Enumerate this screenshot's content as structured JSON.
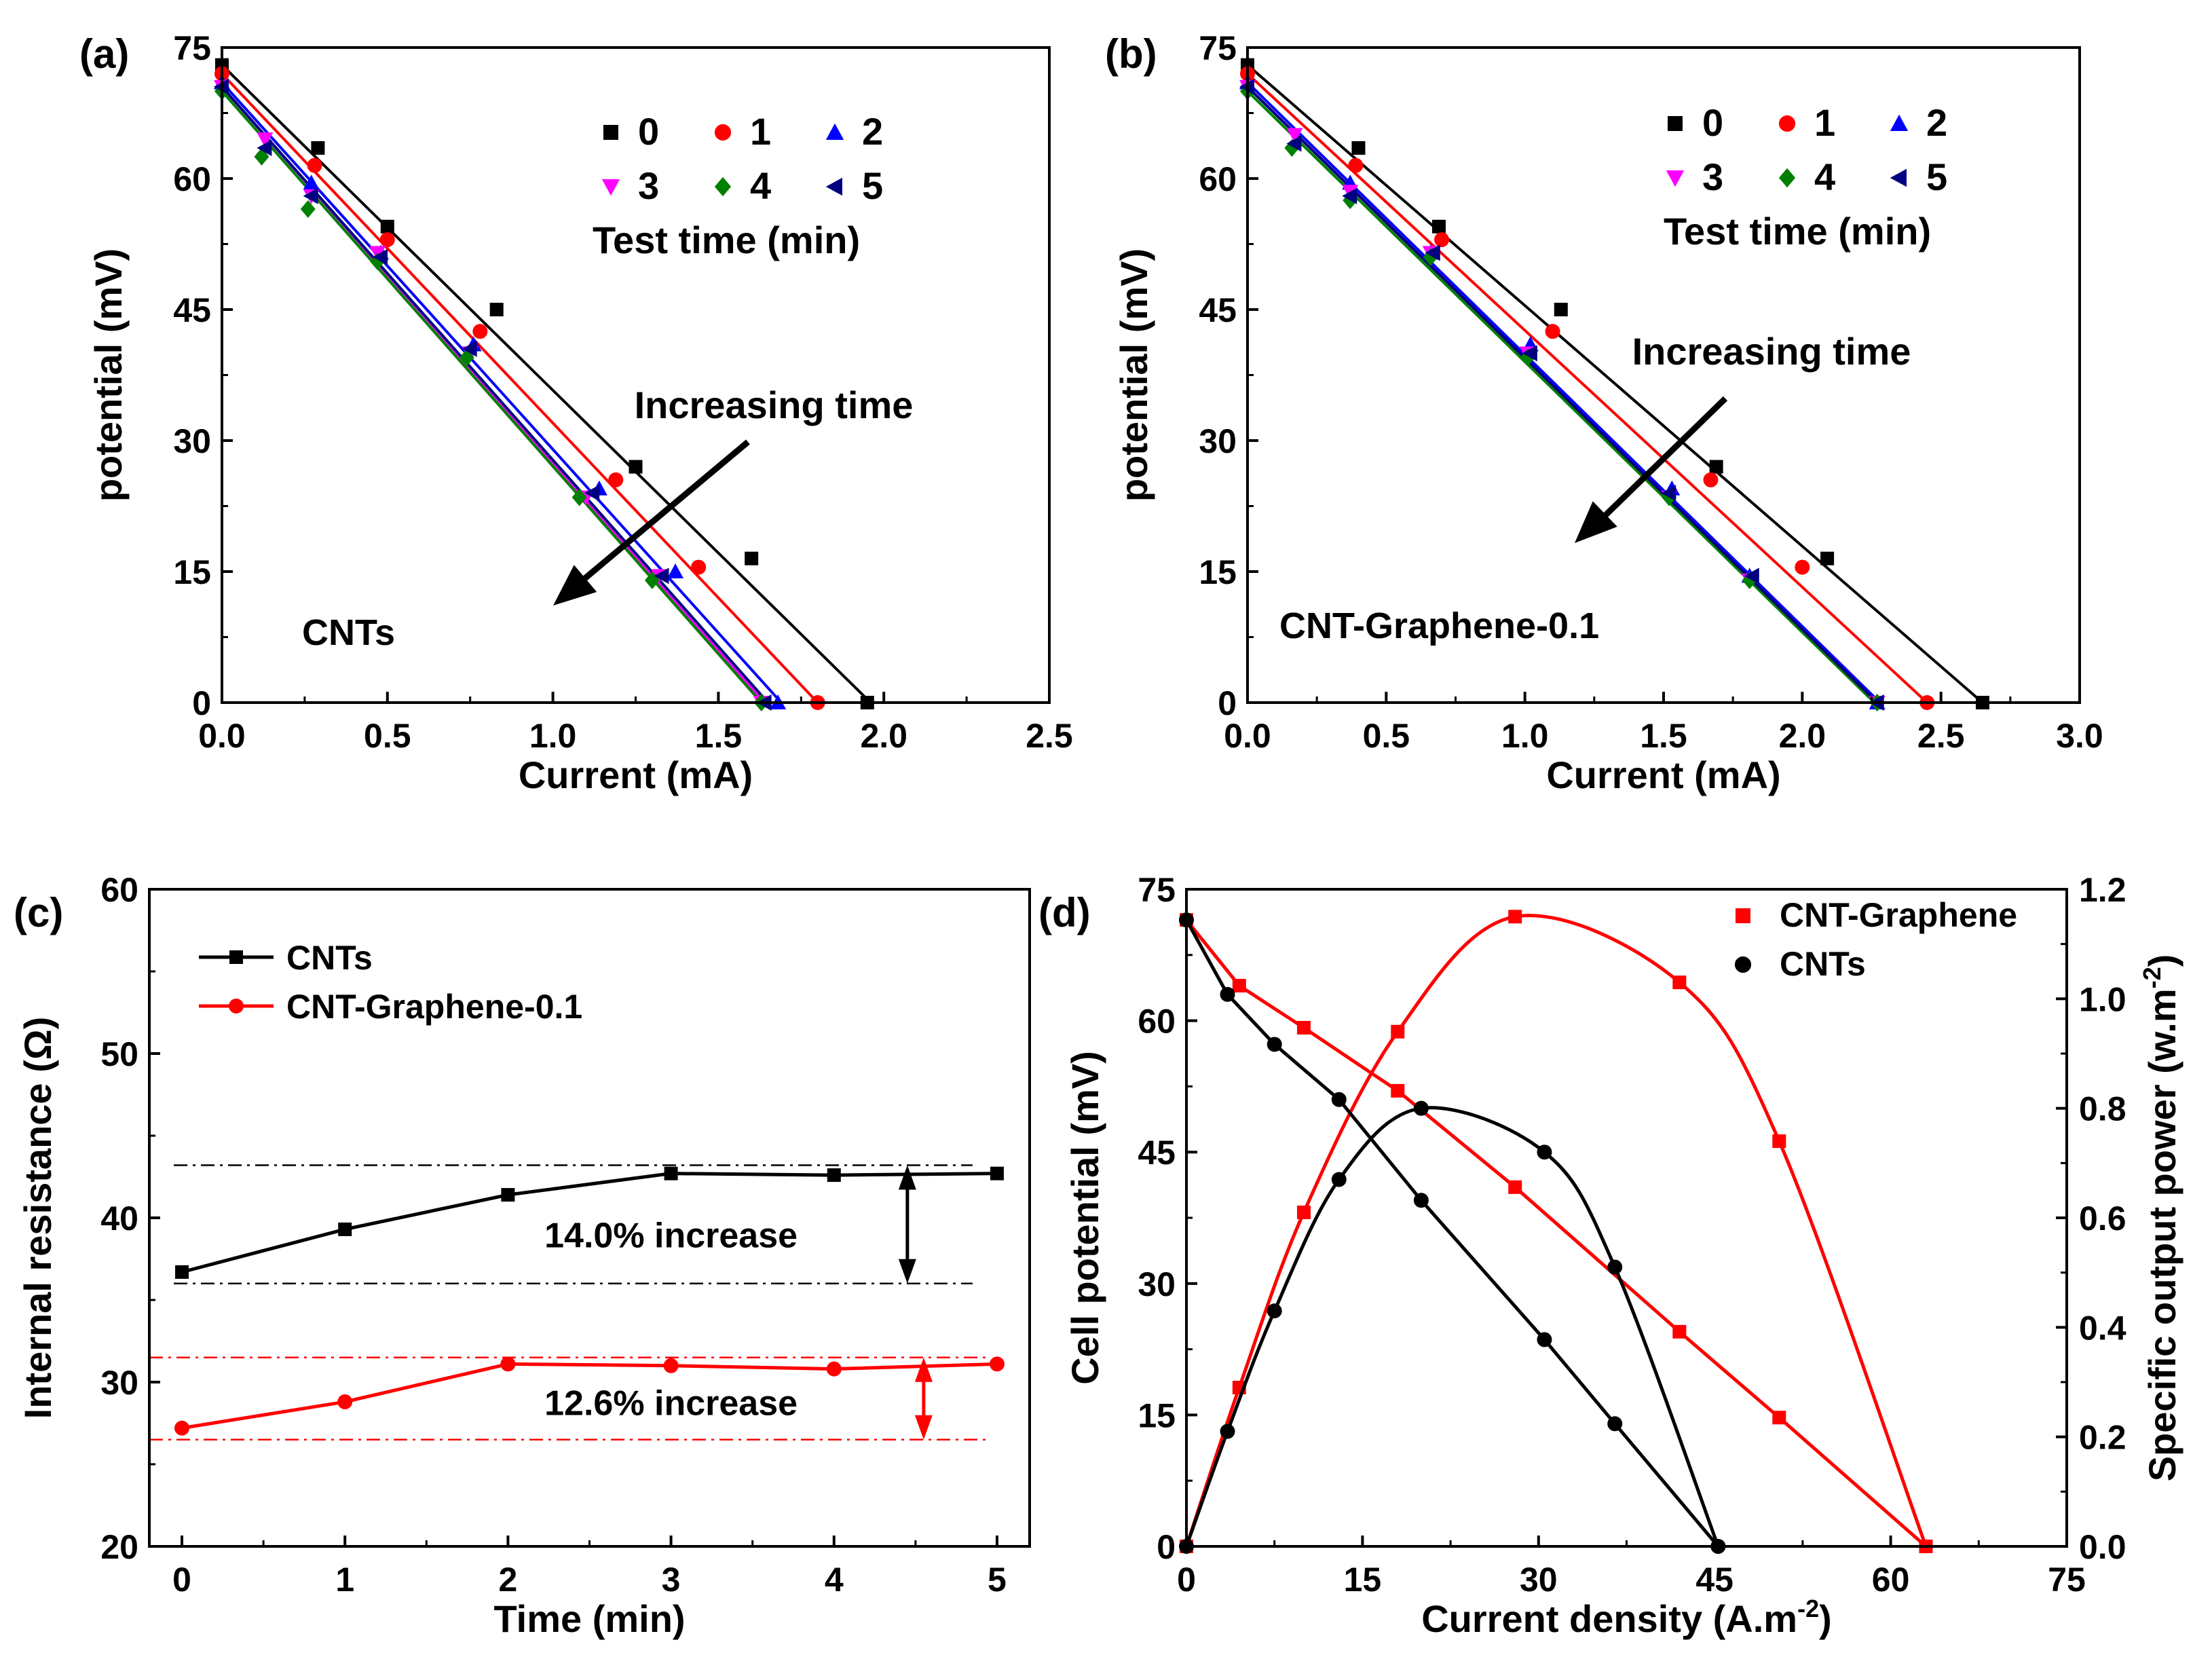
{
  "chart_data": [
    {
      "id": "a",
      "type": "scatter",
      "panel_label": "(a)",
      "xlabel": "Current  (mA)",
      "ylabel": "potential (mV)",
      "xlim": [
        0,
        2.5
      ],
      "ylim": [
        0,
        75
      ],
      "xticks": [
        "0.0",
        "0.5",
        "1.0",
        "1.5",
        "2.0",
        "2.5"
      ],
      "yticks": [
        "0",
        "15",
        "30",
        "45",
        "60",
        "75"
      ],
      "annotation": "Increasing time",
      "sample_label": "CNTs",
      "legend_title": "Test  time (min)",
      "legend_position": "top-right",
      "series": [
        {
          "name": "0",
          "color": "#000000",
          "marker": "square",
          "x": [
            0.0,
            0.29,
            0.5,
            0.83,
            1.25,
            1.6,
            1.95
          ],
          "y": [
            73,
            63.5,
            54.5,
            45,
            27,
            16.5,
            0
          ],
          "fit": [
            [
              0,
              73
            ],
            [
              1.96,
              0
            ]
          ]
        },
        {
          "name": "1",
          "color": "#ff0000",
          "marker": "circle",
          "x": [
            0.0,
            0.28,
            0.5,
            0.78,
            1.19,
            1.44,
            1.8
          ],
          "y": [
            72,
            61.5,
            53,
            42.5,
            25.5,
            15.5,
            0
          ],
          "fit": [
            [
              0,
              72
            ],
            [
              1.8,
              0
            ]
          ]
        },
        {
          "name": "2",
          "color": "#0000ff",
          "marker": "triangle-up",
          "x": [
            0.0,
            0.27,
            0.48,
            0.76,
            1.14,
            1.37,
            1.68
          ],
          "y": [
            71,
            59.5,
            51.5,
            41,
            24.5,
            15,
            0
          ],
          "fit": [
            [
              0,
              71
            ],
            [
              1.69,
              0
            ]
          ]
        },
        {
          "name": "3",
          "color": "#ff00ff",
          "marker": "triangle-down",
          "x": [
            0.0,
            0.13,
            0.27,
            0.47,
            0.75,
            1.1,
            1.32,
            1.63
          ],
          "y": [
            70.5,
            64.5,
            58,
            51.5,
            40,
            23.5,
            14.5,
            0
          ],
          "fit": [
            [
              0,
              70.5
            ],
            [
              1.64,
              0
            ]
          ]
        },
        {
          "name": "4",
          "color": "#008000",
          "marker": "diamond",
          "x": [
            0.0,
            0.12,
            0.26,
            0.47,
            0.74,
            1.08,
            1.3,
            1.63
          ],
          "y": [
            70,
            62.5,
            56.5,
            50.5,
            39.5,
            23.5,
            14,
            0
          ],
          "fit": [
            [
              0,
              70
            ],
            [
              1.63,
              0
            ]
          ]
        },
        {
          "name": "5",
          "color": "#000080",
          "marker": "triangle-left",
          "x": [
            0.0,
            0.13,
            0.27,
            0.48,
            0.75,
            1.12,
            1.33,
            1.64
          ],
          "y": [
            70.5,
            63.5,
            58,
            51,
            40.5,
            24,
            14.5,
            0
          ],
          "fit": [
            [
              0,
              70.5
            ],
            [
              1.65,
              0
            ]
          ]
        }
      ]
    },
    {
      "id": "b",
      "type": "scatter",
      "panel_label": "(b)",
      "xlabel": "Current  (mA)",
      "ylabel": "potential (mV)",
      "xlim": [
        0,
        3.0
      ],
      "ylim": [
        0,
        75
      ],
      "xticks": [
        "0.0",
        "0.5",
        "1.0",
        "1.5",
        "2.0",
        "2.5",
        "3.0"
      ],
      "yticks": [
        "0",
        "15",
        "30",
        "45",
        "60",
        "75"
      ],
      "annotation": "Increasing time",
      "sample_label": "CNT-Graphene-0.1",
      "legend_title": "Test  time (min)",
      "legend_position": "top-right",
      "series": [
        {
          "name": "0",
          "color": "#000000",
          "marker": "square",
          "x": [
            0.0,
            0.4,
            0.69,
            1.13,
            1.69,
            2.09,
            2.65
          ],
          "y": [
            73,
            63.5,
            54.5,
            45,
            27,
            16.5,
            0
          ],
          "fit": [
            [
              0,
              73
            ],
            [
              2.65,
              0
            ]
          ]
        },
        {
          "name": "1",
          "color": "#ff0000",
          "marker": "circle",
          "x": [
            0.0,
            0.39,
            0.7,
            1.1,
            1.67,
            2.0,
            2.45
          ],
          "y": [
            72,
            61.5,
            53,
            42.5,
            25.5,
            15.5,
            0
          ],
          "fit": [
            [
              0,
              72
            ],
            [
              2.45,
              0
            ]
          ]
        },
        {
          "name": "2",
          "color": "#0000ff",
          "marker": "triangle-up",
          "x": [
            0.0,
            0.37,
            0.66,
            1.02,
            1.53,
            1.81,
            2.27
          ],
          "y": [
            71,
            59.5,
            51.5,
            41,
            24.5,
            14.5,
            0
          ],
          "fit": [
            [
              0,
              71
            ],
            [
              2.28,
              0
            ]
          ]
        },
        {
          "name": "3",
          "color": "#ff00ff",
          "marker": "triangle-down",
          "x": [
            0.0,
            0.17,
            0.37,
            0.66,
            1.01,
            1.52,
            1.81,
            2.27
          ],
          "y": [
            70.5,
            65,
            58.5,
            51.5,
            40,
            23.5,
            14,
            0
          ],
          "fit": [
            [
              0,
              70.5
            ],
            [
              2.27,
              0
            ]
          ]
        },
        {
          "name": "4",
          "color": "#008000",
          "marker": "diamond",
          "x": [
            0.0,
            0.16,
            0.37,
            0.66,
            1.01,
            1.52,
            1.81,
            2.27
          ],
          "y": [
            70,
            63.5,
            57.5,
            51,
            39.5,
            23.5,
            14,
            0
          ],
          "fit": [
            [
              0,
              70
            ],
            [
              2.26,
              0
            ]
          ]
        },
        {
          "name": "5",
          "color": "#000080",
          "marker": "triangle-left",
          "x": [
            0.0,
            0.17,
            0.37,
            0.67,
            1.02,
            1.52,
            1.82,
            2.27
          ],
          "y": [
            70.5,
            64,
            58,
            51.5,
            40,
            24,
            14.5,
            0
          ],
          "fit": [
            [
              0,
              70.5
            ],
            [
              2.27,
              0
            ]
          ]
        }
      ]
    },
    {
      "id": "c",
      "type": "line",
      "panel_label": "(c)",
      "xlabel": "Time (min)",
      "ylabel": "Internal resistance (Ω)",
      "xlim": [
        -0.2,
        5.2
      ],
      "ylim": [
        20,
        60
      ],
      "xticks": [
        "0",
        "1",
        "2",
        "3",
        "4",
        "5"
      ],
      "yticks": [
        "20",
        "30",
        "40",
        "50",
        "60"
      ],
      "legend_position": "top-left",
      "series": [
        {
          "name": "CNTs",
          "color": "#000000",
          "marker": "square",
          "x": [
            0,
            1,
            2,
            3,
            4,
            5
          ],
          "y": [
            36.7,
            39.3,
            41.4,
            42.7,
            42.6,
            42.7
          ]
        },
        {
          "name": "CNT-Graphene-0.1",
          "color": "#ff0000",
          "marker": "circle",
          "x": [
            0,
            1,
            2,
            3,
            4,
            5
          ],
          "y": [
            27.2,
            28.8,
            31.1,
            31.0,
            30.8,
            31.1
          ]
        }
      ],
      "annotations": [
        {
          "text": "14.0% increase",
          "color": "#000000",
          "x": 3.0,
          "y": 38.2,
          "ref_high": 43.2,
          "ref_low": 36.0,
          "arrow_x": 4.45,
          "ref_x": [
            -0.05,
            4.85
          ]
        },
        {
          "text": "12.6% increase",
          "color": "#ff0000",
          "x": 3.0,
          "y": 28.0,
          "ref_high": 31.5,
          "ref_low": 26.5,
          "arrow_x": 4.55,
          "ref_x": [
            -0.2,
            4.95
          ]
        }
      ]
    },
    {
      "id": "d",
      "type": "line",
      "panel_label": "(d)",
      "xlabel_main": "Current density (A.m",
      "xlabel_sup": "-2",
      "xlabel_end": ")",
      "ylabel": "Cell potential (mV)",
      "y2label_main": "Specific output power (w.m",
      "y2label_sup": "-2",
      "y2label_end": ")",
      "xlim": [
        0,
        75
      ],
      "ylim": [
        0,
        75
      ],
      "y2lim": [
        0,
        1.2
      ],
      "xticks": [
        "0",
        "15",
        "30",
        "45",
        "60",
        "75"
      ],
      "yticks": [
        "0",
        "15",
        "30",
        "45",
        "60",
        "75"
      ],
      "y2ticks": [
        "0.0",
        "0.2",
        "0.4",
        "0.6",
        "0.8",
        "1.0",
        "1.2"
      ],
      "legend_position": "top-right",
      "series": [
        {
          "name": "CNT-Graphene",
          "color": "#ff0000",
          "marker": "square",
          "axis": "left",
          "x": [
            0,
            4.5,
            10,
            18,
            28,
            42,
            50.5,
            63
          ],
          "y": [
            71.5,
            64,
            59.2,
            52,
            41,
            24.5,
            14.7,
            0
          ]
        },
        {
          "name": "CNT-Graphene power",
          "color": "#ff0000",
          "marker": "square",
          "axis": "right",
          "x": [
            0,
            4.5,
            10,
            18,
            28,
            42,
            50.5,
            63
          ],
          "y": [
            0.0,
            0.29,
            0.61,
            0.94,
            1.15,
            1.03,
            0.74,
            0.0
          ]
        },
        {
          "name": "CNTs",
          "color": "#000000",
          "marker": "circle",
          "axis": "left",
          "x": [
            0,
            3.5,
            7.5,
            13,
            20,
            30.5,
            36.5,
            45.3
          ],
          "y": [
            71.5,
            63,
            57.3,
            51,
            39.5,
            23.6,
            14,
            0
          ]
        },
        {
          "name": "CNTs power",
          "color": "#000000",
          "marker": "circle",
          "axis": "right",
          "x": [
            0,
            3.5,
            7.5,
            13,
            20,
            30.5,
            36.5,
            45.3
          ],
          "y": [
            0.0,
            0.21,
            0.43,
            0.67,
            0.8,
            0.72,
            0.51,
            0.0
          ]
        }
      ],
      "legend": [
        "CNT-Graphene",
        "CNTs"
      ]
    }
  ]
}
